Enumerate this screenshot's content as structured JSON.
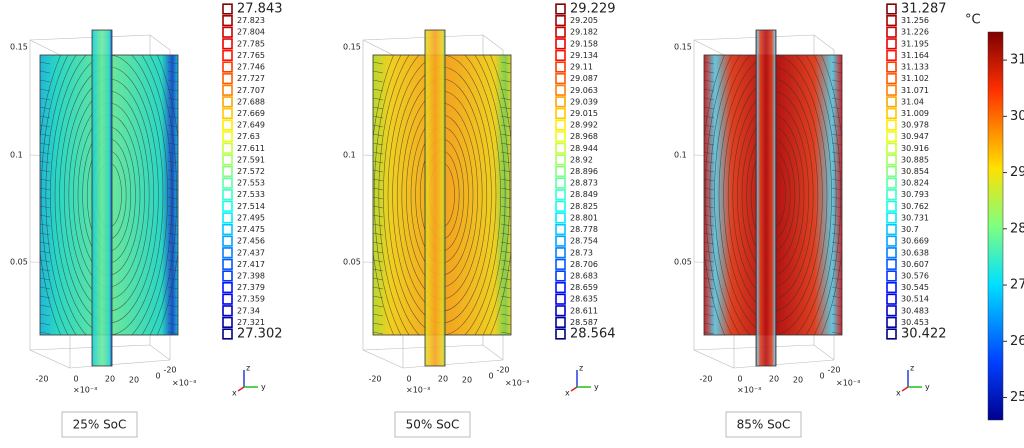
{
  "panels": [
    {
      "caption": "25% SoC",
      "legend": {
        "max": 27.843,
        "levels": [
          27.823,
          27.804,
          27.785,
          27.765,
          27.746,
          27.727,
          27.707,
          27.688,
          27.669,
          27.649,
          27.63,
          27.611,
          27.591,
          27.572,
          27.553,
          27.533,
          27.514,
          27.495,
          27.475,
          27.456,
          27.437,
          27.417,
          27.398,
          27.379,
          27.359,
          27.34,
          27.321
        ],
        "min": 27.302
      }
    },
    {
      "caption": "50% SoC",
      "legend": {
        "max": 29.229,
        "levels": [
          29.205,
          29.182,
          29.158,
          29.134,
          29.11,
          29.087,
          29.063,
          29.039,
          29.015,
          28.992,
          28.968,
          28.944,
          28.92,
          28.896,
          28.873,
          28.849,
          28.825,
          28.801,
          28.778,
          28.754,
          28.73,
          28.706,
          28.683,
          28.659,
          28.635,
          28.611,
          28.587
        ],
        "min": 28.564
      }
    },
    {
      "caption": "85% SoC",
      "legend": {
        "max": 31.287,
        "levels": [
          31.256,
          31.226,
          31.195,
          31.164,
          31.133,
          31.102,
          31.071,
          31.04,
          31.009,
          30.978,
          30.947,
          30.916,
          30.885,
          30.854,
          30.824,
          30.793,
          30.762,
          30.731,
          30.7,
          30.669,
          30.638,
          30.607,
          30.576,
          30.545,
          30.514,
          30.483,
          30.453
        ],
        "min": 30.422
      }
    }
  ],
  "axes": {
    "z_ticks": [
      "0.15",
      "0.1",
      "0.05"
    ],
    "x_ticks": [
      "-20",
      "0",
      "20"
    ],
    "y_ticks": [
      "20",
      "0",
      "-20"
    ],
    "scale": "×10⁻³",
    "triad": [
      "z",
      "y",
      "x"
    ]
  },
  "colorbar": {
    "unit": "°C",
    "range": [
      24.6,
      31.5
    ],
    "ticks": [
      25,
      26,
      27,
      28,
      29,
      30,
      31
    ]
  }
}
